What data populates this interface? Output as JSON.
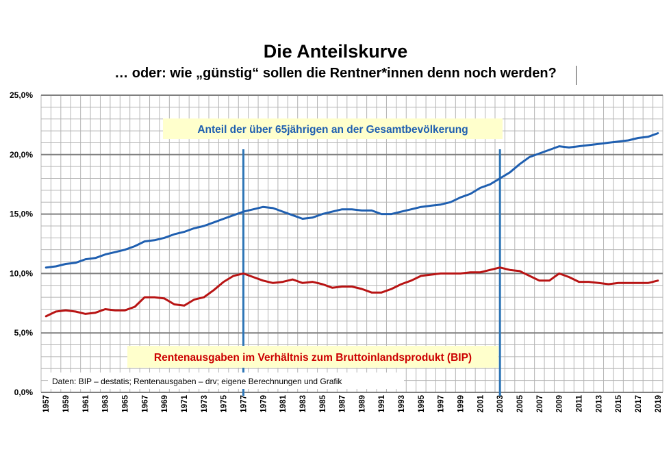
{
  "title": "Die Anteilskurve",
  "subtitle": "… oder: wie „günstig“ sollen die Rentner*innen denn noch werden?",
  "chart_data": {
    "type": "line",
    "x": [
      1957,
      1958,
      1959,
      1960,
      1961,
      1962,
      1963,
      1964,
      1965,
      1966,
      1967,
      1968,
      1969,
      1970,
      1971,
      1972,
      1973,
      1974,
      1975,
      1976,
      1977,
      1978,
      1979,
      1980,
      1981,
      1982,
      1983,
      1984,
      1985,
      1986,
      1987,
      1988,
      1989,
      1990,
      1991,
      1992,
      1993,
      1994,
      1995,
      1996,
      1997,
      1998,
      1999,
      2000,
      2001,
      2002,
      2003,
      2004,
      2005,
      2006,
      2007,
      2008,
      2009,
      2010,
      2011,
      2012,
      2013,
      2014,
      2015,
      2016,
      2017,
      2018,
      2019
    ],
    "x_tick_labels": [
      "1957",
      "1959",
      "1961",
      "1963",
      "1965",
      "1967",
      "1969",
      "1971",
      "1973",
      "1975",
      "1977",
      "1979",
      "1981",
      "1983",
      "1985",
      "1987",
      "1989",
      "1991",
      "1993",
      "1995",
      "1997",
      "1999",
      "2001",
      "2003",
      "2005",
      "2007",
      "2009",
      "2011",
      "2013",
      "2015",
      "2017",
      "2019"
    ],
    "y_tick_labels": [
      "0,0%",
      "5,0%",
      "10,0%",
      "15,0%",
      "20,0%",
      "25,0%"
    ],
    "ylim": [
      0,
      25
    ],
    "grid": true,
    "series": [
      {
        "name": "Anteil der über 65jährigen an der Gesamtbevölkerung",
        "color": "#1f5fb0",
        "values": [
          10.5,
          10.6,
          10.8,
          10.9,
          11.2,
          11.3,
          11.6,
          11.8,
          12.0,
          12.3,
          12.7,
          12.8,
          13.0,
          13.3,
          13.5,
          13.8,
          14.0,
          14.3,
          14.6,
          14.9,
          15.2,
          15.4,
          15.6,
          15.5,
          15.2,
          14.9,
          14.6,
          14.7,
          15.0,
          15.2,
          15.4,
          15.4,
          15.3,
          15.3,
          15.0,
          15.0,
          15.2,
          15.4,
          15.6,
          15.7,
          15.8,
          16.0,
          16.4,
          16.7,
          17.2,
          17.5,
          18.0,
          18.5,
          19.2,
          19.8,
          20.1,
          20.4,
          20.7,
          20.6,
          20.7,
          20.8,
          20.9,
          21.0,
          21.1,
          21.2,
          21.4,
          21.5,
          21.8
        ]
      },
      {
        "name": "Rentenausgaben im Verhältnis zum Bruttoinlandsprodukt (BIP)",
        "color": "#b81414",
        "values": [
          6.4,
          6.8,
          6.9,
          6.8,
          6.6,
          6.7,
          7.0,
          6.9,
          6.9,
          7.2,
          8.0,
          8.0,
          7.9,
          7.4,
          7.3,
          7.8,
          8.0,
          8.6,
          9.3,
          9.8,
          10.0,
          9.7,
          9.4,
          9.2,
          9.3,
          9.5,
          9.2,
          9.3,
          9.1,
          8.8,
          8.9,
          8.9,
          8.7,
          8.4,
          8.4,
          8.7,
          9.1,
          9.4,
          9.8,
          9.9,
          10.0,
          10.0,
          10.0,
          10.1,
          10.1,
          10.3,
          10.5,
          10.3,
          10.2,
          9.8,
          9.4,
          9.4,
          10.0,
          9.7,
          9.3,
          9.3,
          9.2,
          9.1,
          9.2,
          9.2,
          9.2,
          9.2,
          9.4
        ]
      }
    ],
    "markers": [
      1977,
      2003
    ],
    "source": "Daten: BIP – destatis; Rentenausgaben – drv; eigene Berechnungen und Grafik"
  }
}
